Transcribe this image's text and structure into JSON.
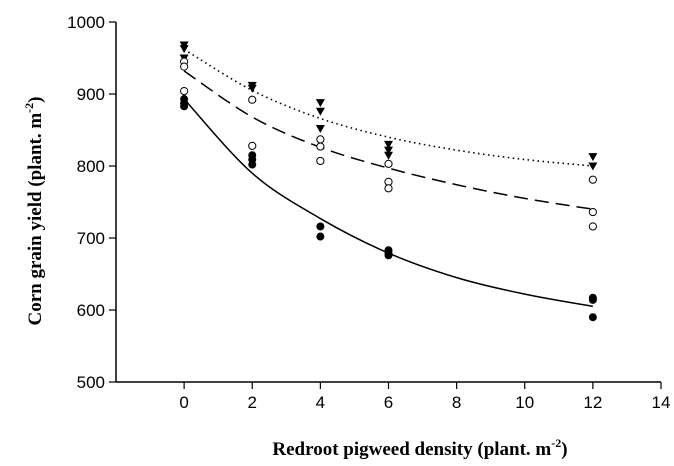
{
  "chart_data": {
    "type": "scatter",
    "title": "",
    "xlabel": {
      "text": "Redroot pigweed density (plant. m",
      "sup": "-2",
      "tail": ")"
    },
    "ylabel": {
      "text": "Corn grain yield (plant. m",
      "sup": "-2",
      "tail": ")"
    },
    "xlim": [
      -2,
      14
    ],
    "ylim": [
      500,
      1000
    ],
    "xticks": [
      0,
      2,
      4,
      6,
      8,
      10,
      12,
      14
    ],
    "yticks": [
      500,
      600,
      700,
      800,
      900,
      1000
    ],
    "grid": false,
    "legend": "none",
    "series": [
      {
        "marker": "triangle-down-filled",
        "color": "#000000",
        "points": [
          [
            0,
            968
          ],
          [
            0,
            963
          ],
          [
            0,
            950
          ],
          [
            2,
            912
          ],
          [
            2,
            908
          ],
          [
            4,
            888
          ],
          [
            4,
            876
          ],
          [
            4,
            852
          ],
          [
            6,
            830
          ],
          [
            6,
            822
          ],
          [
            6,
            815
          ],
          [
            12,
            813
          ],
          [
            12,
            800
          ]
        ],
        "fit": {
          "style": "dotted",
          "values": [
            [
              0,
              962
            ],
            [
              2,
              905
            ],
            [
              4,
              866
            ],
            [
              6,
              840
            ],
            [
              8,
              822
            ],
            [
              10,
              809
            ],
            [
              12,
              800
            ]
          ]
        }
      },
      {
        "marker": "circle-open",
        "color": "#000000",
        "points": [
          [
            0,
            945
          ],
          [
            0,
            938
          ],
          [
            0,
            904
          ],
          [
            2,
            892
          ],
          [
            2,
            828
          ],
          [
            4,
            837
          ],
          [
            4,
            827
          ],
          [
            4,
            807
          ],
          [
            6,
            803
          ],
          [
            6,
            778
          ],
          [
            6,
            769
          ],
          [
            12,
            781
          ],
          [
            12,
            736
          ],
          [
            12,
            716
          ]
        ],
        "fit": {
          "style": "dashed",
          "values": [
            [
              0,
              932
            ],
            [
              2,
              868
            ],
            [
              4,
              826
            ],
            [
              6,
              797
            ],
            [
              8,
              774
            ],
            [
              10,
              755
            ],
            [
              12,
              740
            ]
          ]
        }
      },
      {
        "marker": "circle-filled",
        "color": "#000000",
        "points": [
          [
            0,
            893
          ],
          [
            0,
            887
          ],
          [
            0,
            883
          ],
          [
            2,
            815
          ],
          [
            2,
            809
          ],
          [
            2,
            802
          ],
          [
            4,
            716
          ],
          [
            4,
            702
          ],
          [
            6,
            683
          ],
          [
            6,
            679
          ],
          [
            6,
            676
          ],
          [
            12,
            617
          ],
          [
            12,
            614
          ],
          [
            12,
            590
          ]
        ],
        "fit": {
          "style": "solid",
          "values": [
            [
              0,
              893
            ],
            [
              2,
              790
            ],
            [
              4,
              727
            ],
            [
              6,
              679
            ],
            [
              8,
              645
            ],
            [
              10,
              622
            ],
            [
              12,
              605
            ]
          ]
        }
      }
    ]
  }
}
